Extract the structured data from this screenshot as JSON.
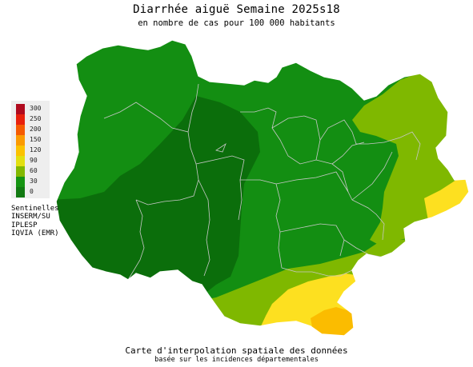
{
  "header": {
    "title": "Diarrhée aiguë Semaine 2025s18",
    "subtitle": "en nombre de cas pour 100 000 habitants"
  },
  "legend": {
    "items": [
      {
        "label": "300",
        "color": "#b00a1e"
      },
      {
        "label": "250",
        "color": "#e8200c"
      },
      {
        "label": "200",
        "color": "#f55a00"
      },
      {
        "label": "150",
        "color": "#fb9a00"
      },
      {
        "label": "120",
        "color": "#fbc200"
      },
      {
        "label": "90",
        "color": "#e2df10"
      },
      {
        "label": "60",
        "color": "#82b800"
      },
      {
        "label": "30",
        "color": "#159412"
      },
      {
        "label": "0",
        "color": "#127a12"
      }
    ]
  },
  "sources": {
    "lines": [
      "Sentinelles",
      "INSERM/SU",
      "IPLESP",
      "IQVIA (EMR)"
    ]
  },
  "footer": {
    "line1": "Carte d'interpolation spatiale des données",
    "line2": "basée sur les incidences départementales"
  },
  "map": {
    "colors": {
      "darkgreen": "#0b6e0b",
      "green": "#138e12",
      "lightgreen": "#7fb800",
      "yellow": "#fde020",
      "orange": "#fbbc00",
      "border": "#c8c8c8"
    }
  }
}
